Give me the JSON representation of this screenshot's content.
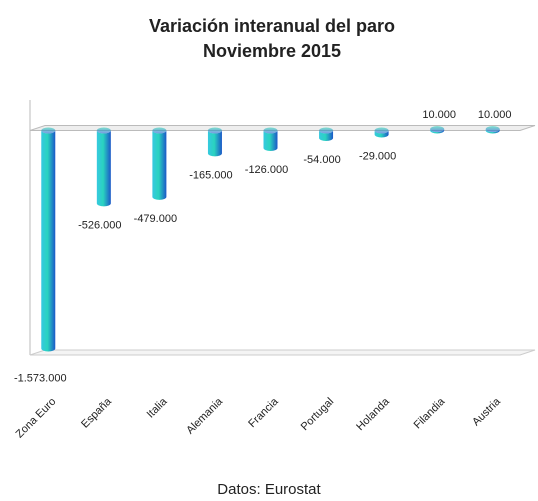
{
  "chart_data": {
    "type": "bar",
    "title": "Variación interanual del paro",
    "subtitle": "Noviembre 2015",
    "source": "Datos: Eurostat",
    "categories": [
      "Zona Euro",
      "España",
      "Italia",
      "Alemania",
      "Francia",
      "Portugal",
      "Holanda",
      "Filandia",
      "Austria"
    ],
    "values": [
      -1573000,
      -526000,
      -479000,
      -165000,
      -126000,
      -54000,
      -29000,
      10000,
      10000
    ],
    "value_labels": [
      "-1.573.000",
      "-526.000",
      "-479.000",
      "-165.000",
      "-126.000",
      "-54.000",
      "-29.000",
      "10.000",
      "10.000"
    ],
    "color": "#1f6fd6",
    "ylim": [
      -1620000,
      220000
    ]
  }
}
